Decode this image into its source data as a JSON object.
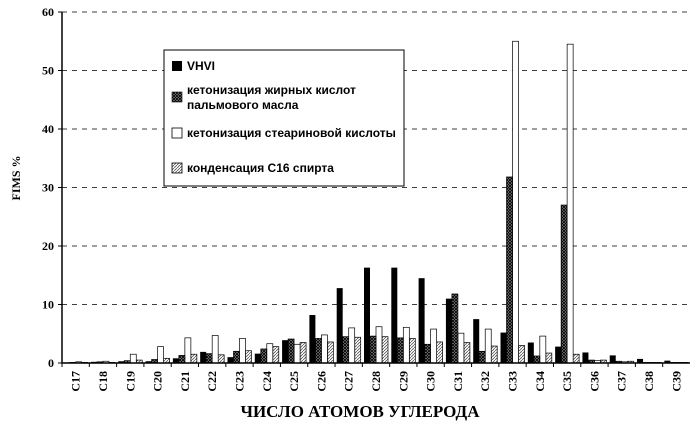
{
  "chart_data": {
    "type": "bar",
    "title": "",
    "xlabel": "ЧИСЛО АТОМОВ УГЛЕРОДА",
    "ylabel": "FIMS %",
    "ylim": [
      0,
      60
    ],
    "yticks": [
      "0",
      "10",
      "20",
      "30",
      "40",
      "50",
      "60"
    ],
    "categories": [
      "C17",
      "C18",
      "C19",
      "C20",
      "C21",
      "C22",
      "C23",
      "C24",
      "C25",
      "C26",
      "C27",
      "C28",
      "C29",
      "C30",
      "C31",
      "C32",
      "C33",
      "C34",
      "C35",
      "C36",
      "C37",
      "C38",
      "C39"
    ],
    "grid": "dashed horizontal",
    "legend_position": "top-center",
    "series": [
      {
        "name": "VHVI",
        "color": "#000000",
        "pattern": "solid",
        "values": [
          0.1,
          0.2,
          0.3,
          0.3,
          0.8,
          1.9,
          1.0,
          1.6,
          3.9,
          8.2,
          12.8,
          16.3,
          16.3,
          14.5,
          11.0,
          7.5,
          5.2,
          3.5,
          2.8,
          1.8,
          1.3,
          0.7,
          0.4
        ]
      },
      {
        "name": "кетонизация жирных кислот пальмового масла",
        "color": "#555555",
        "pattern": "crosshatch",
        "values": [
          0.1,
          0.2,
          0.4,
          0.6,
          1.3,
          1.6,
          2.0,
          2.4,
          4.1,
          4.2,
          4.5,
          4.6,
          4.3,
          3.2,
          11.8,
          2.0,
          31.8,
          1.2,
          27.0,
          0.5,
          0.3,
          0.1,
          0.1
        ]
      },
      {
        "name": "кетонизация стеариновой кислоты",
        "color": "#ffffff",
        "pattern": "outline",
        "values": [
          0.2,
          0.3,
          1.5,
          2.8,
          4.3,
          4.7,
          4.2,
          3.3,
          3.2,
          4.8,
          6.0,
          6.2,
          6.1,
          5.8,
          5.1,
          5.8,
          55.0,
          4.6,
          54.5,
          0.4,
          0.2,
          0.1,
          0.1
        ]
      },
      {
        "name": "конденсация С16  спирта",
        "color": "#aaaaaa",
        "pattern": "diagonal-hatch",
        "values": [
          0.1,
          0.1,
          0.5,
          0.8,
          1.5,
          1.4,
          2.1,
          2.8,
          3.5,
          3.6,
          4.4,
          4.5,
          4.2,
          3.6,
          3.5,
          2.9,
          3.0,
          1.7,
          1.5,
          0.5,
          0.3,
          0.1,
          0.1
        ]
      }
    ]
  }
}
